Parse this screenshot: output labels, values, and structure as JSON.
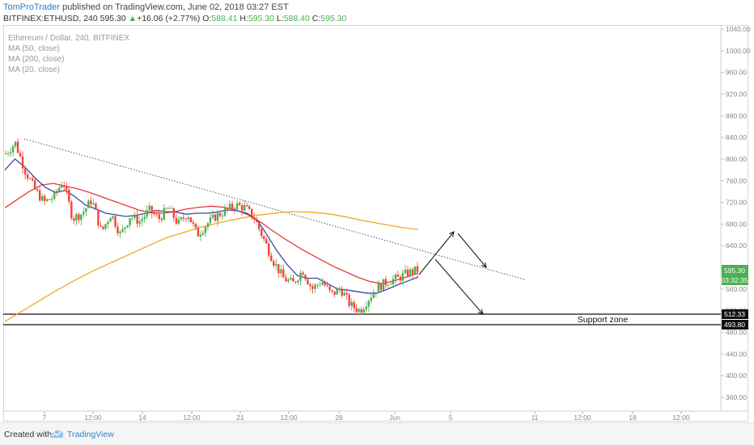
{
  "header": {
    "author": "TomProTrader",
    "published_text": " published on TradingView.com, June 02, 2018 03:27 EST",
    "symbol": "BITFINEX:ETHUSD, 240",
    "last": "595.30",
    "change_arrow": "▲",
    "change": "+16.06 (+2.77%)",
    "o_label": "O:",
    "o": "588.41",
    "h_label": "H:",
    "h": "595.30",
    "l_label": "L:",
    "l": "588.40",
    "c_label": "C:",
    "c": "595.30"
  },
  "legend": {
    "title": "Ethereum / Dollar, 240, BITFINEX",
    "ma1": "MA (50, close)",
    "ma2": "MA (200, close)",
    "ma3": "MA (20, close)"
  },
  "annotations": {
    "support_label": "Support zone"
  },
  "price_tags": {
    "current_price": "595.30",
    "countdown": "03:32:35",
    "support_top": "512.33",
    "support_bottom": "493.80"
  },
  "footer": {
    "created_with": "Created with",
    "brand": "TradingView"
  },
  "colors": {
    "up": "#4caf50",
    "down": "#f44336",
    "ma50": "#e53935",
    "ma200": "#f5a623",
    "ma20": "#3949ab",
    "author": "#2d7cc1"
  },
  "chart_data": {
    "type": "candlestick",
    "title": "Ethereum / Dollar, 240, BITFINEX",
    "y_axis": {
      "ticks": [
        "1040.00",
        "1000.00",
        "960.00",
        "920.00",
        "880.00",
        "840.00",
        "800.00",
        "760.00",
        "720.00",
        "680.00",
        "640.00",
        "600.00",
        "560.00",
        "520.00",
        "480.00",
        "440.00",
        "400.00",
        "360.00"
      ],
      "ylim": [
        340,
        1045
      ]
    },
    "x_axis": {
      "ticks": [
        "7",
        "12:00",
        "14",
        "12:00",
        "21",
        "12:00",
        "28",
        "Jun",
        "5",
        "11",
        "12:00",
        "18",
        "12:00"
      ]
    },
    "close_path": [
      810,
      830,
      780,
      745,
      720,
      730,
      760,
      690,
      700,
      725,
      665,
      700,
      660,
      695,
      685,
      705,
      690,
      710,
      680,
      700,
      660,
      680,
      695,
      705,
      715,
      710,
      690,
      650,
      610,
      580,
      570,
      595,
      560,
      575,
      550,
      560,
      530,
      520,
      545,
      565,
      575,
      580,
      590,
      595
    ],
    "ma20": [
      780,
      800,
      785,
      765,
      748,
      738,
      742,
      730,
      715,
      708,
      700,
      697,
      694,
      696,
      700,
      705,
      703,
      702,
      698,
      700,
      700,
      702,
      706,
      705,
      700,
      688,
      660,
      630,
      605,
      585,
      580,
      580,
      570,
      560,
      558,
      555,
      552,
      553,
      560,
      568,
      575,
      582
    ],
    "ma50": [
      710,
      725,
      740,
      752,
      755,
      750,
      745,
      738,
      730,
      722,
      714,
      706,
      701,
      700,
      703,
      708,
      711,
      713,
      711,
      706,
      697,
      684,
      668,
      653,
      639,
      626,
      614,
      602,
      592,
      582,
      574,
      570,
      575,
      582,
      590
    ],
    "ma200": [
      500,
      520,
      540,
      560,
      578,
      595,
      610,
      625,
      640,
      655,
      665,
      675,
      683,
      690,
      696,
      700,
      703,
      702,
      699,
      693,
      686,
      680,
      674,
      670
    ],
    "support_zone": [
      493.8,
      512.33
    ],
    "trendline": {
      "from": {
        "date": "6",
        "price": 835
      },
      "to": {
        "date": "~Jun 7",
        "price": 575
      }
    },
    "scenario_arrows": [
      "up to ~665 then down",
      "down to ~520"
    ]
  }
}
